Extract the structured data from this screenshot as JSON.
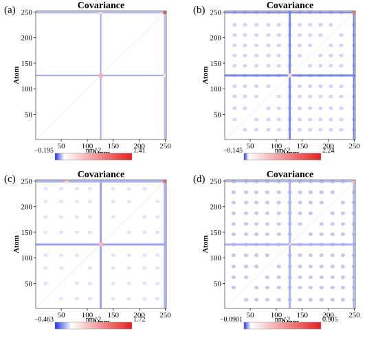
{
  "colors": {
    "negative": "#2033e6",
    "zero": "#ffffff",
    "positive": "#e52020",
    "frame": "#555555"
  },
  "chart_data": [
    {
      "panel_label": "(a)",
      "type": "heatmap",
      "title": "Covariance",
      "xlabel": "Atom",
      "ylabel": "Atom",
      "xlim": [
        1,
        252
      ],
      "ylim": [
        1,
        252
      ],
      "xticks": [
        50,
        100,
        150,
        200,
        250
      ],
      "yticks": [
        50,
        100,
        150,
        200,
        250
      ],
      "colorbar": {
        "min": -0.195,
        "max": 1.41,
        "min_label": "−0.195",
        "max_label": "1.41",
        "unit": "nm^2"
      },
      "features": {
        "bands": [
          {
            "atom": 126,
            "width": 3,
            "value": -0.09
          },
          {
            "atom": 249,
            "width": 3,
            "value": -0.08
          }
        ],
        "peaks": [
          {
            "x": 126,
            "y": 126,
            "value": 0.55
          },
          {
            "x": 250,
            "y": 250,
            "value": 1.2
          },
          {
            "x": 250,
            "y": 126,
            "value": 0.25
          },
          {
            "x": 126,
            "y": 250,
            "value": 0.25
          }
        ],
        "spots": []
      }
    },
    {
      "panel_label": "(b)",
      "type": "heatmap",
      "title": "Covariance",
      "xlabel": "Atom",
      "ylabel": "Atom",
      "xlim": [
        1,
        252
      ],
      "ylim": [
        1,
        252
      ],
      "xticks": [
        50,
        100,
        150,
        200,
        250
      ],
      "yticks": [
        50,
        100,
        150,
        200,
        250
      ],
      "colorbar": {
        "min": -0.145,
        "max": 2.24,
        "min_label": "−0.145",
        "max_label": "2.24",
        "unit": "nm^2"
      },
      "features": {
        "bands": [
          {
            "atom": 126,
            "width": 4,
            "value": -0.1
          },
          {
            "atom": 249,
            "width": 3,
            "value": -0.1
          }
        ],
        "peaks": [
          {
            "x": 126,
            "y": 126,
            "value": 0.5
          },
          {
            "x": 250,
            "y": 250,
            "value": 1.5
          }
        ],
        "spots": [
          {
            "atoms": [
              20,
              40,
              62,
              85,
              105,
              126,
              145,
              165,
              185,
              205,
              225,
              249
            ],
            "value": -0.05
          }
        ]
      }
    },
    {
      "panel_label": "(c)",
      "type": "heatmap",
      "title": "Covariance",
      "xlabel": "Atom",
      "ylabel": "Atom",
      "xlim": [
        1,
        252
      ],
      "ylim": [
        1,
        252
      ],
      "xticks": [
        50,
        100,
        150,
        200,
        250
      ],
      "yticks": [
        50,
        100,
        150,
        200,
        250
      ],
      "colorbar": {
        "min": -0.463,
        "max": 1.72,
        "min_label": "−0.463",
        "max_label": "1.72",
        "unit": "nm^2"
      },
      "features": {
        "bands": [
          {
            "atom": 126,
            "width": 4,
            "value": -0.25
          },
          {
            "atom": 249,
            "width": 4,
            "value": -0.2
          }
        ],
        "peaks": [
          {
            "x": 126,
            "y": 126,
            "value": 0.6
          },
          {
            "x": 250,
            "y": 250,
            "value": 1.3
          },
          {
            "x": 60,
            "y": 250,
            "value": 0.4
          }
        ],
        "spots": [
          {
            "atoms": [
              20,
              50,
              80,
              105,
              150,
              180,
              210,
              235
            ],
            "value": -0.1
          }
        ]
      }
    },
    {
      "panel_label": "(d)",
      "type": "heatmap",
      "title": "Covariance",
      "xlabel": "Atom",
      "ylabel": "Atom",
      "xlim": [
        1,
        252
      ],
      "ylim": [
        1,
        252
      ],
      "xticks": [
        50,
        100,
        150,
        200,
        250
      ],
      "yticks": [
        50,
        100,
        150,
        200,
        250
      ],
      "colorbar": {
        "min": -0.0901,
        "max": 0.905,
        "min_label": "−0.0901",
        "max_label": "0.905",
        "unit": "nm^2"
      },
      "features": {
        "bands": [
          {
            "atom": 126,
            "width": 4,
            "value": -0.04
          },
          {
            "atom": 249,
            "width": 3,
            "value": -0.04
          }
        ],
        "peaks": [
          {
            "x": 250,
            "y": 250,
            "value": 0.3
          }
        ],
        "spots": [
          {
            "atoms": [
              18,
              42,
              62,
              83,
              105,
              126,
              146,
              166,
              187,
              208,
              228,
              249
            ],
            "value": -0.04
          }
        ]
      }
    }
  ]
}
